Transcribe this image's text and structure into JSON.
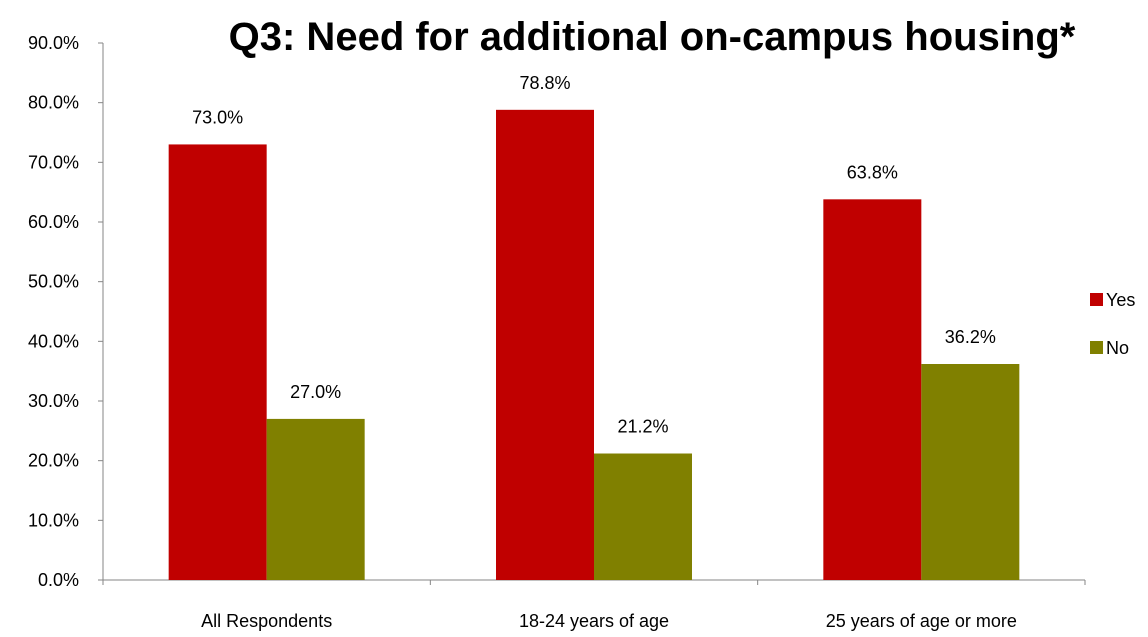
{
  "chart_data": {
    "type": "bar",
    "title": "Q3: Need for additional on-campus housing*",
    "categories": [
      "All Respondents",
      "18-24 years of age",
      "25 years of age or more"
    ],
    "series": [
      {
        "name": "Yes",
        "values": [
          73.0,
          78.8,
          63.8
        ],
        "color": "#C00000"
      },
      {
        "name": "No",
        "values": [
          27.0,
          21.2,
          36.2
        ],
        "color": "#808000"
      }
    ],
    "data_labels": [
      [
        "73.0%",
        "78.8%",
        "63.8%"
      ],
      [
        "27.0%",
        "21.2%",
        "36.2%"
      ]
    ],
    "ylim": [
      0,
      90
    ],
    "yticks": [
      "0.0%",
      "10.0%",
      "20.0%",
      "30.0%",
      "40.0%",
      "50.0%",
      "60.0%",
      "70.0%",
      "80.0%",
      "90.0%"
    ],
    "xlabel": "",
    "ylabel": "",
    "grid": false,
    "legend_position": "right"
  }
}
